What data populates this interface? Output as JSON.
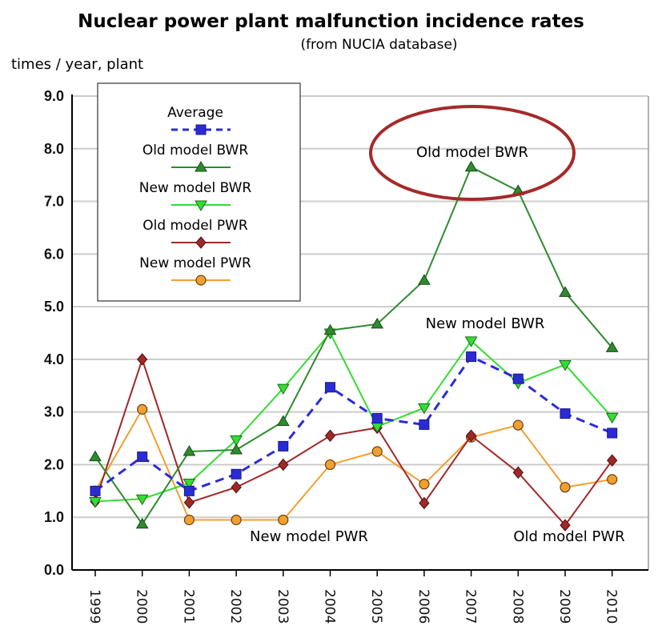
{
  "header": {
    "title": "Nuclear power plant malfunction incidence rates",
    "subtitle": "(from NUCIA database)",
    "ylabel": "times / year, plant"
  },
  "annotations": {
    "old_bwr": "Old model BWR",
    "new_bwr": "New model BWR",
    "new_pwr": "New model PWR",
    "old_pwr": "Old model PWR"
  },
  "colors": {
    "average": "#2b2bd6",
    "old_bwr": "#2e8b2e",
    "new_bwr": "#33dd33",
    "old_pwr": "#a02828",
    "new_pwr": "#f0a030",
    "ellipse": "#a52a2a",
    "grid": "#cccccc"
  },
  "chart_data": {
    "type": "line",
    "title": "Nuclear power plant malfunction incidence rates",
    "subtitle": "(from NUCIA database)",
    "ylabel": "times / year, plant",
    "xlabel": "",
    "ylim": [
      0,
      9
    ],
    "yticks": [
      "0.0",
      "1.0",
      "2.0",
      "3.0",
      "4.0",
      "5.0",
      "6.0",
      "7.0",
      "8.0",
      "9.0"
    ],
    "categories": [
      "1999",
      "2000",
      "2001",
      "2002",
      "2003",
      "2004",
      "2005",
      "2006",
      "2007",
      "2008",
      "2009",
      "2010"
    ],
    "grid": true,
    "legend_position": "top-left",
    "series": [
      {
        "name": "Average",
        "key": "average",
        "marker": "square",
        "dash": true,
        "values": [
          1.5,
          2.15,
          1.5,
          1.82,
          2.35,
          3.47,
          2.88,
          2.76,
          4.05,
          3.63,
          2.97,
          2.6
        ]
      },
      {
        "name": "Old model BWR",
        "key": "old_bwr",
        "marker": "triangle-up",
        "dash": false,
        "values": [
          2.15,
          0.87,
          2.25,
          2.28,
          2.82,
          4.55,
          4.67,
          5.5,
          7.65,
          7.2,
          5.27,
          4.22
        ]
      },
      {
        "name": "New model BWR",
        "key": "new_bwr",
        "marker": "triangle-down",
        "dash": false,
        "values": [
          1.3,
          1.35,
          1.65,
          2.47,
          3.45,
          4.5,
          2.72,
          3.08,
          4.35,
          3.55,
          3.9,
          2.9
        ]
      },
      {
        "name": "Old model PWR",
        "key": "old_pwr",
        "marker": "diamond",
        "dash": false,
        "values": [
          1.3,
          4.0,
          1.28,
          1.57,
          2.0,
          2.55,
          2.7,
          1.27,
          2.55,
          1.85,
          0.85,
          2.08
        ]
      },
      {
        "name": "New model PWR",
        "key": "new_pwr",
        "marker": "circle",
        "dash": false,
        "values": [
          1.5,
          3.05,
          0.95,
          0.95,
          0.95,
          2.0,
          2.25,
          1.63,
          2.52,
          2.75,
          1.57,
          1.72
        ]
      }
    ]
  }
}
